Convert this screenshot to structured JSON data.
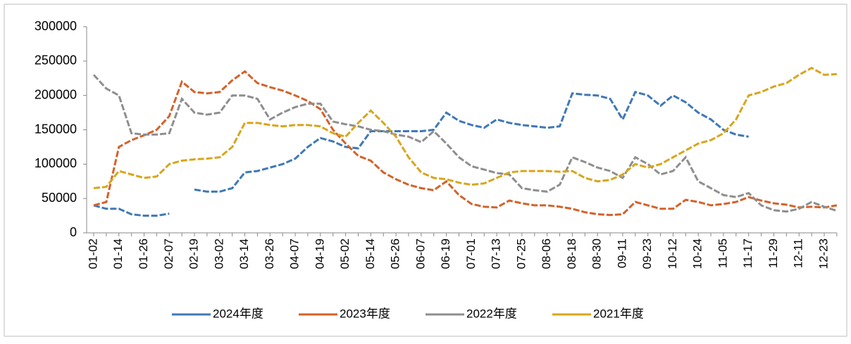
{
  "chart_data": {
    "type": "line",
    "categories": [
      "01-02",
      null,
      "01-14",
      null,
      "01-26",
      null,
      "02-07",
      null,
      "02-19",
      null,
      "03-02",
      null,
      "03-14",
      null,
      "03-26",
      null,
      "04-07",
      null,
      "04-19",
      null,
      "05-02",
      null,
      "05-14",
      null,
      "05-26",
      null,
      "06-07",
      null,
      "06-19",
      null,
      "07-01",
      null,
      "07-13",
      null,
      "07-25",
      null,
      "08-06",
      null,
      "08-18",
      null,
      "08-30",
      null,
      "09-11",
      null,
      "09-23",
      null,
      "10-12",
      null,
      "10-24",
      null,
      "11-05",
      null,
      "11-17",
      null,
      "11-29",
      null,
      "12-11",
      null,
      "12-23",
      null
    ],
    "series": [
      {
        "name": "2024年度",
        "color": "#3f78b6",
        "values": [
          40000,
          35000,
          35000,
          27000,
          25000,
          25000,
          28000,
          null,
          63000,
          60000,
          60000,
          65000,
          88000,
          90000,
          95000,
          100000,
          108000,
          125000,
          138000,
          133000,
          125000,
          123000,
          148000,
          148000,
          148000,
          148000,
          148000,
          150000,
          175000,
          163000,
          157000,
          153000,
          165000,
          160000,
          157000,
          155000,
          153000,
          155000,
          203000,
          201000,
          200000,
          195000,
          165000,
          205000,
          200000,
          185000,
          200000,
          190000,
          175000,
          165000,
          150000,
          143000,
          140000,
          null,
          null,
          null,
          null,
          null,
          null,
          null
        ]
      },
      {
        "name": "2023年度",
        "color": "#d2622a",
        "values": [
          40000,
          45000,
          125000,
          135000,
          142000,
          150000,
          170000,
          220000,
          205000,
          203000,
          205000,
          222000,
          235000,
          218000,
          212000,
          207000,
          200000,
          192000,
          180000,
          150000,
          130000,
          112000,
          105000,
          88000,
          78000,
          70000,
          65000,
          62000,
          75000,
          55000,
          42000,
          38000,
          37000,
          47000,
          43000,
          40000,
          40000,
          38000,
          35000,
          30000,
          27000,
          26000,
          27000,
          45000,
          40000,
          35000,
          35000,
          48000,
          45000,
          40000,
          42000,
          45000,
          52000,
          47000,
          43000,
          41000,
          37000,
          38000,
          37000,
          40000
        ]
      },
      {
        "name": "2022年度",
        "color": "#8e8e8e",
        "values": [
          230000,
          210000,
          200000,
          145000,
          143000,
          143000,
          145000,
          195000,
          175000,
          172000,
          175000,
          200000,
          200000,
          195000,
          165000,
          175000,
          183000,
          188000,
          188000,
          162000,
          158000,
          155000,
          150000,
          148000,
          143000,
          140000,
          132000,
          148000,
          130000,
          110000,
          97000,
          92000,
          87000,
          85000,
          65000,
          62000,
          60000,
          70000,
          110000,
          103000,
          95000,
          90000,
          80000,
          110000,
          100000,
          85000,
          90000,
          110000,
          75000,
          65000,
          55000,
          52000,
          58000,
          40000,
          33000,
          31000,
          35000,
          45000,
          38000,
          32000
        ]
      },
      {
        "name": "2021年度",
        "color": "#d8a51c",
        "values": [
          65000,
          67000,
          90000,
          85000,
          80000,
          82000,
          100000,
          105000,
          107000,
          108000,
          110000,
          125000,
          160000,
          160000,
          157000,
          155000,
          157000,
          157000,
          155000,
          145000,
          140000,
          160000,
          178000,
          160000,
          140000,
          110000,
          88000,
          80000,
          78000,
          73000,
          70000,
          72000,
          80000,
          88000,
          90000,
          90000,
          90000,
          89000,
          90000,
          80000,
          75000,
          77000,
          85000,
          100000,
          95000,
          100000,
          110000,
          120000,
          130000,
          135000,
          145000,
          165000,
          200000,
          205000,
          213000,
          218000,
          230000,
          240000,
          230000,
          231000
        ]
      }
    ],
    "ylim": [
      0,
      300000
    ],
    "yticks": [
      0,
      50000,
      100000,
      150000,
      200000,
      250000,
      300000
    ],
    "grid": false,
    "legend": "bottom",
    "dashed": true
  }
}
